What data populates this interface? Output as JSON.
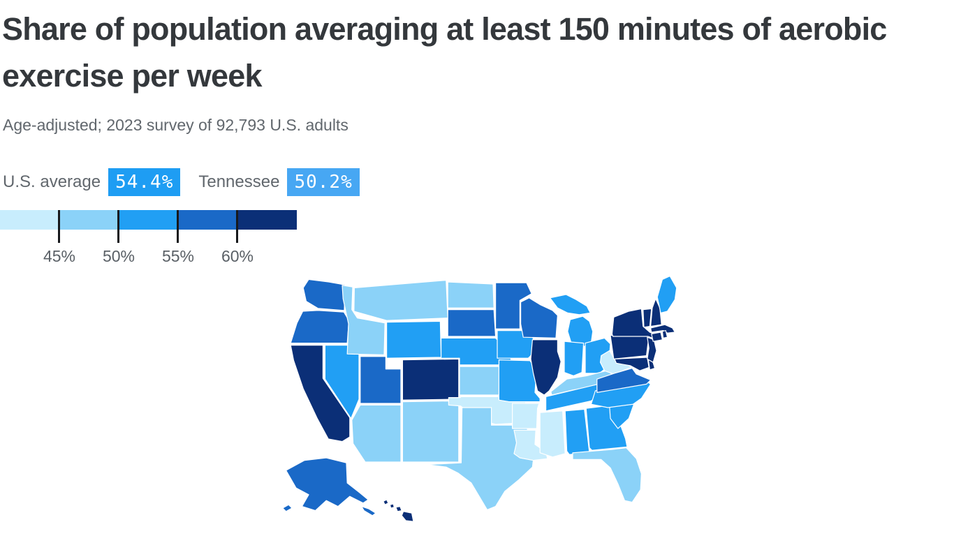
{
  "page": {
    "background": "#ffffff"
  },
  "chart_data": {
    "type": "choropleth",
    "region": "United States, Albers-style state map",
    "title": "Share of population averaging at least 150 minutes of aerobic exercise per week",
    "subtitle": "Age-adjusted; 2023 survey of 92,793 U.S. adults",
    "callouts": [
      {
        "label": "U.S. average",
        "value": "54.4%",
        "badge_color": "#1e9df3"
      },
      {
        "label": "Tennessee",
        "value": "50.2%",
        "badge_color": "#47a7f3"
      }
    ],
    "scale": {
      "ticks": [
        "45%",
        "50%",
        "55%",
        "60%"
      ],
      "tick_positions_pct": [
        20,
        40,
        60,
        80
      ],
      "bins": [
        {
          "id": "b1",
          "label": "<45%",
          "color": "#c8edfd"
        },
        {
          "id": "b2",
          "label": "45–50%",
          "color": "#8bd2f8"
        },
        {
          "id": "b3",
          "label": "50–55%",
          "color": "#219ff4"
        },
        {
          "id": "b4",
          "label": "55–60%",
          "color": "#1a69c7"
        },
        {
          "id": "b5",
          "label": "≥60%",
          "color": "#0b2f77"
        }
      ]
    },
    "state_bins": {
      "WA": "b4",
      "OR": "b4",
      "CA": "b5",
      "NV": "b3",
      "ID": "b2",
      "MT": "b2",
      "WY": "b3",
      "UT": "b4",
      "CO": "b5",
      "AZ": "b2",
      "NM": "b2",
      "ND": "b2",
      "SD": "b4",
      "NE": "b3",
      "KS": "b2",
      "OK": "b1",
      "TX": "b2",
      "MN": "b4",
      "IA": "b3",
      "MO": "b3",
      "AR": "b1",
      "LA": "b1",
      "WI": "b4",
      "IL": "b5",
      "MI": "b3",
      "IN": "b3",
      "OH": "b3",
      "KY": "b2",
      "TN": "b3",
      "MS": "b1",
      "AL": "b3",
      "GA": "b3",
      "FL": "b2",
      "SC": "b3",
      "NC": "b3",
      "VA": "b4",
      "WV": "b1",
      "PA": "b5",
      "NY": "b5",
      "MD": "b5",
      "DE": "b5",
      "NJ": "b5",
      "VT": "b5",
      "NH": "b5",
      "ME": "b3",
      "MA": "b5",
      "CT": "b5",
      "RI": "b5",
      "AK": "b4",
      "HI": "b5"
    }
  },
  "colors": {
    "title_text": "#34383c",
    "muted_text": "#61676d",
    "tick_line": "#17191c",
    "state_border": "#ffffff"
  }
}
